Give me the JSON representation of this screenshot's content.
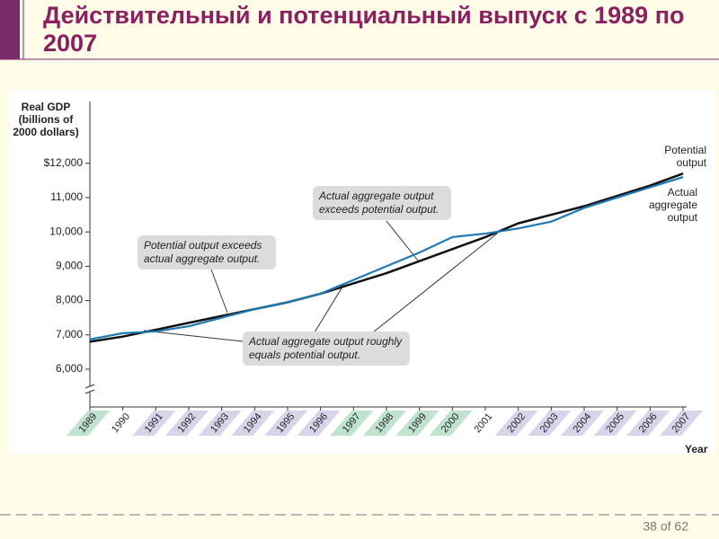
{
  "chart_data": {
    "type": "line",
    "title": "Действительный и потенциальный выпуск с 1989 по 2007",
    "y_label": "Real GDP (billions of 2000 dollars)",
    "x_label": "Year",
    "categories": [
      "1989",
      "1990",
      "1991",
      "1992",
      "1993",
      "1994",
      "1995",
      "1996",
      "1997",
      "1998",
      "1999",
      "2000",
      "2001",
      "2002",
      "2003",
      "2004",
      "2005",
      "2006",
      "2007"
    ],
    "series": [
      {
        "name": "Potential output",
        "color": "#111111",
        "values": [
          6800,
          6950,
          7150,
          7350,
          7550,
          7750,
          7950,
          8200,
          8500,
          8800,
          9150,
          9500,
          9850,
          10250,
          10500,
          10750,
          11050,
          11350,
          11700
        ]
      },
      {
        "name": "Actual aggregate output",
        "color": "#1f78b4",
        "values": [
          6870,
          7050,
          7100,
          7250,
          7500,
          7750,
          7950,
          8200,
          8600,
          9000,
          9400,
          9850,
          9950,
          10100,
          10300,
          10700,
          11000,
          11300,
          11600
        ]
      }
    ],
    "ylim": [
      4900,
      13800
    ],
    "yticks": [
      {
        "value": 6000,
        "label": "6,000"
      },
      {
        "value": 7000,
        "label": "7,000"
      },
      {
        "value": 8000,
        "label": "8,000"
      },
      {
        "value": 9000,
        "label": "9,000"
      },
      {
        "value": 10000,
        "label": "10,000"
      },
      {
        "value": 11000,
        "label": "11,000"
      },
      {
        "value": 12000,
        "label": "$12,000"
      }
    ],
    "annotations": [
      "Potential output exceeds actual aggregate output.",
      "Actual aggregate output exceeds potential output.",
      "Actual aggregate output roughly equals potential output."
    ]
  },
  "footer": {
    "page": "38 of 62"
  }
}
